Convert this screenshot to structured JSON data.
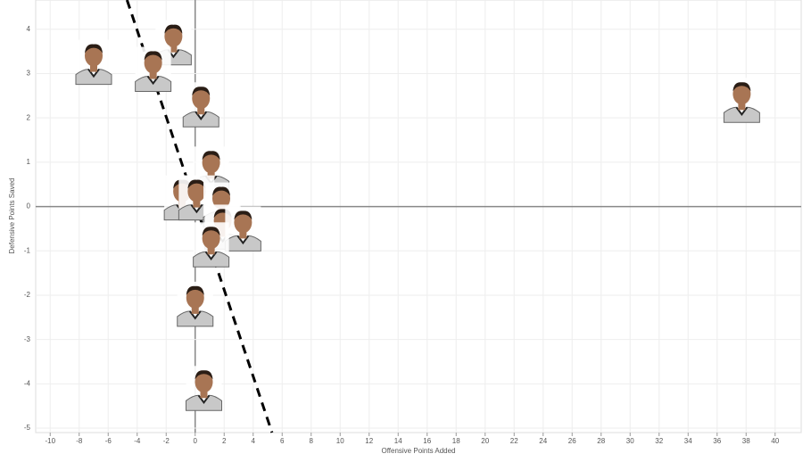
{
  "chart_data": {
    "type": "scatter",
    "x_label": "Offensive Points Added",
    "y_label": "Defensive Points Saved",
    "xlim": [
      -11,
      41.8
    ],
    "ylim": [
      -5.1,
      4.66
    ],
    "xticks": [
      -10,
      -8,
      -6,
      -4,
      -2,
      0,
      2,
      4,
      6,
      8,
      10,
      12,
      14,
      16,
      18,
      20,
      22,
      24,
      26,
      28,
      30,
      32,
      34,
      36,
      38,
      40
    ],
    "yticks": [
      -5,
      -4,
      -3,
      -2,
      -1,
      0,
      1,
      2,
      3,
      4
    ],
    "grid": true,
    "series": [
      {
        "color": "#a87554",
        "x": [
          -7.0,
          -1.5,
          -2.9,
          0.4,
          37.7,
          1.1,
          -0.9,
          0.1,
          1.8,
          1.9,
          3.3,
          1.1,
          0.0,
          0.6
        ],
        "values": [
          3.26,
          3.7,
          3.1,
          2.3,
          2.4,
          0.85,
          0.2,
          0.2,
          0.04,
          -0.46,
          -0.5,
          -0.86,
          -2.2,
          -4.1
        ]
      }
    ],
    "trend_line": {
      "color": "#000000",
      "x": [
        -4.7,
        5.3
      ],
      "values": [
        4.66,
        -5.1
      ]
    }
  }
}
